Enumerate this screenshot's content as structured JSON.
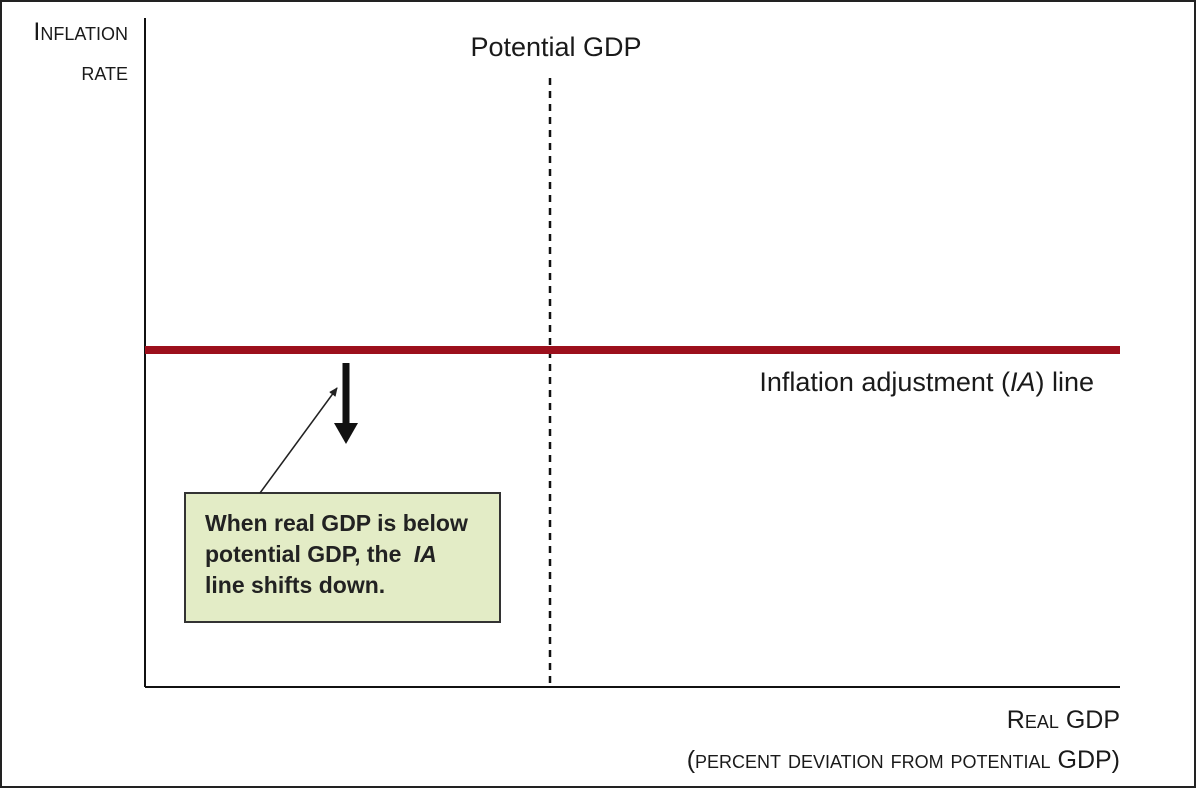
{
  "y_axis_label": {
    "lines": [
      "Inflation",
      "rate"
    ]
  },
  "x_axis_label": {
    "lines": [
      "Real GDP",
      "(percent deviation from potential GDP)"
    ]
  },
  "potential_gdp_label": "Potential GDP",
  "ia_line_label": {
    "parts": [
      "Inflation adjustment (",
      "IA",
      ") line"
    ]
  },
  "callout": {
    "lines": [
      [
        "When real GDP is below"
      ],
      [
        "potential GDP, the ",
        "IA"
      ],
      [
        "line shifts down."
      ]
    ]
  }
}
